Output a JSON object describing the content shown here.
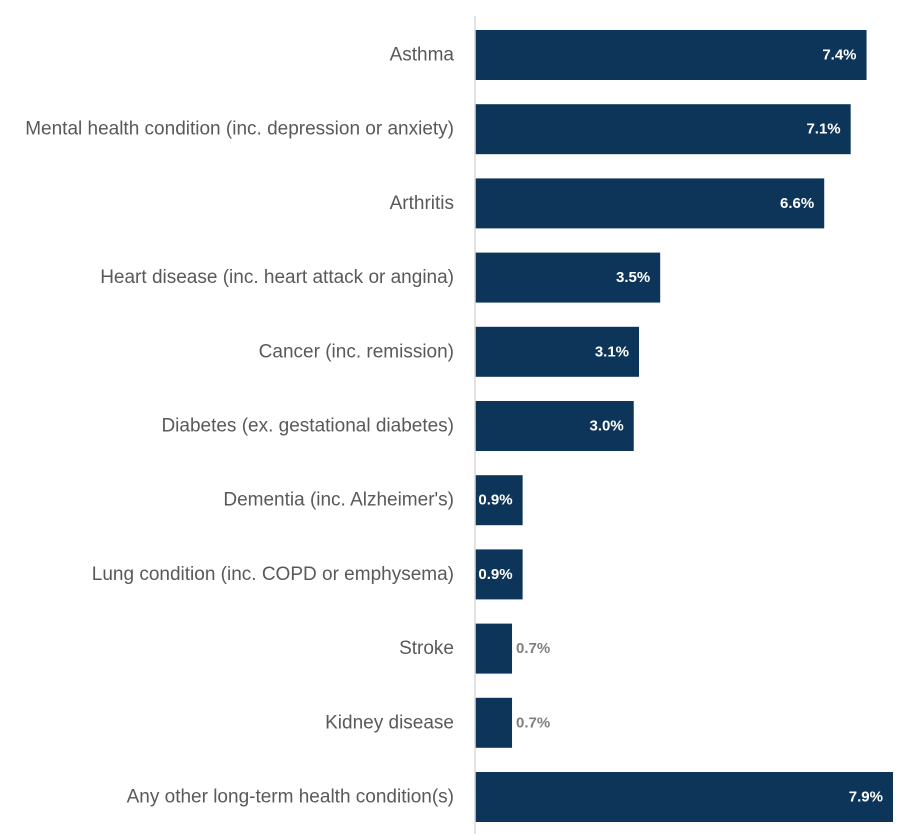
{
  "chart_data": {
    "type": "bar",
    "orientation": "horizontal",
    "categories": [
      "Asthma",
      "Mental health condition (inc. depression or anxiety)",
      "Arthritis",
      "Heart disease (inc. heart attack or angina)",
      "Cancer (inc. remission)",
      "Diabetes (ex. gestational diabetes)",
      "Dementia (inc. Alzheimer's)",
      "Lung condition (inc. COPD or emphysema)",
      "Stroke",
      "Kidney disease",
      "Any other long-term health condition(s)"
    ],
    "values": [
      7.4,
      7.1,
      6.6,
      3.5,
      3.1,
      3.0,
      0.9,
      0.9,
      0.7,
      0.7,
      7.9
    ],
    "value_labels": [
      "7.4%",
      "7.1%",
      "6.6%",
      "3.5%",
      "3.1%",
      "3.0%",
      "0.9%",
      "0.9%",
      "0.7%",
      "0.7%",
      "7.9%"
    ],
    "xlim": [
      0,
      8.1
    ],
    "grid": false,
    "legend": "none",
    "colors": {
      "bar": "#0c3559",
      "axis": "#d9d9d9",
      "label_text": "#595959",
      "value_inside": "#ffffff",
      "value_outside": "#7f7f7f"
    }
  }
}
